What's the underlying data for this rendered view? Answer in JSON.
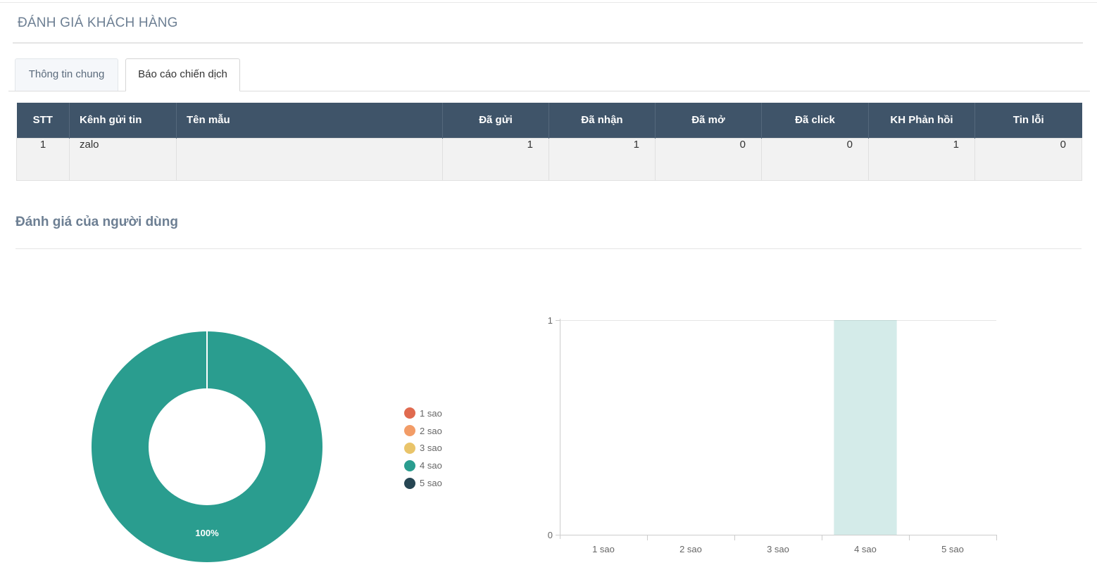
{
  "page": {
    "title": "ĐÁNH GIÁ KHÁCH HÀNG"
  },
  "tabs": [
    {
      "label": "Thông tin chung",
      "active": false
    },
    {
      "label": "Báo cáo chiến dịch",
      "active": true
    }
  ],
  "table": {
    "headers": [
      "STT",
      "Kênh gửi tin",
      "Tên mẫu",
      "Đã gửi",
      "Đã nhận",
      "Đã mở",
      "Đã click",
      "KH Phản hồi",
      "Tin lỗi"
    ],
    "rows": [
      {
        "stt": "1",
        "channel": "zalo",
        "template": "",
        "sent": "1",
        "received": "1",
        "opened": "0",
        "clicked": "0",
        "replied": "1",
        "errors": "0"
      }
    ]
  },
  "section": {
    "title": "Đánh giá của người dùng"
  },
  "colors": {
    "1 sao": "#e06a4f",
    "2 sao": "#f29c67",
    "3 sao": "#e9c46a",
    "4 sao": "#2a9d8f",
    "5 sao": "#264653"
  },
  "chart_data": [
    {
      "type": "pie",
      "categories": [
        "1 sao",
        "2 sao",
        "3 sao",
        "4 sao",
        "5 sao"
      ],
      "values": [
        0,
        0,
        0,
        1,
        0
      ],
      "data_labels": [
        "",
        "",
        "",
        "100%",
        ""
      ],
      "legend": "right"
    },
    {
      "type": "bar",
      "categories": [
        "1 sao",
        "2 sao",
        "3 sao",
        "4 sao",
        "5 sao"
      ],
      "values": [
        0,
        0,
        0,
        1,
        0
      ],
      "ylim": [
        0,
        1
      ],
      "yticks": [
        "0",
        "1"
      ],
      "grid": true
    }
  ]
}
